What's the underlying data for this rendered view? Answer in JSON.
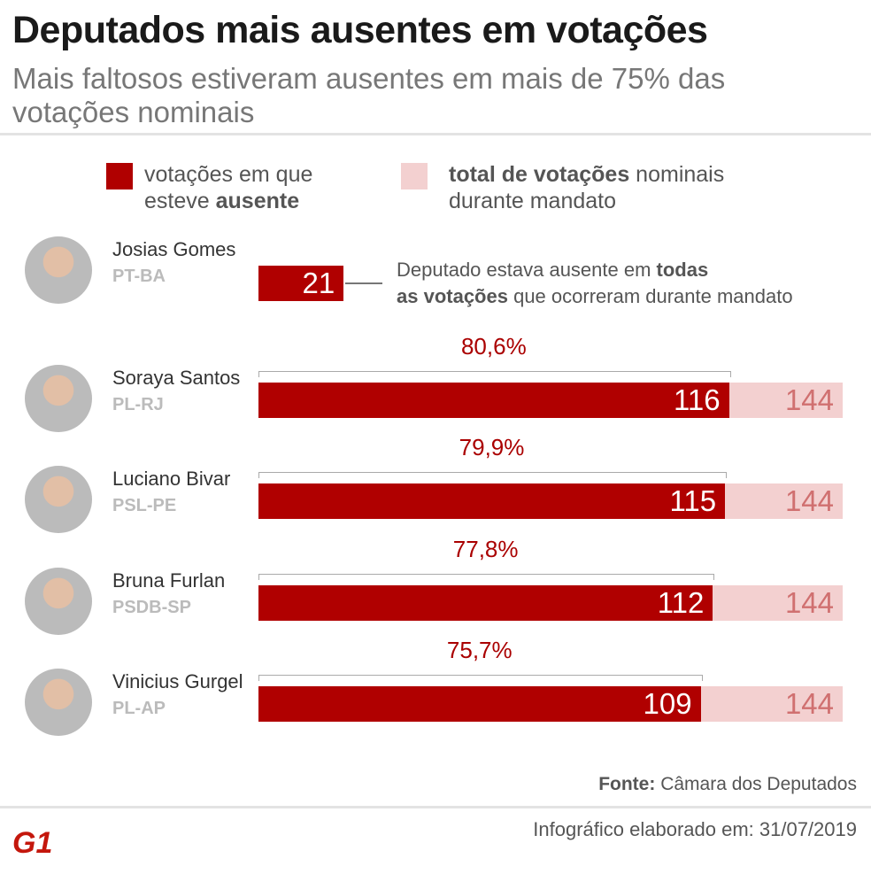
{
  "header": {
    "title": "Deputados mais ausentes em votações",
    "subtitle": "Mais faltosos estiveram ausentes em mais de 75% das votações nominais"
  },
  "legend": {
    "absent": {
      "line1": "votações em que",
      "line2_pre": "esteve ",
      "line2_bold": "ausente",
      "color": "#b00000"
    },
    "total": {
      "line1_bold": "total de votações",
      "line1_rest": " nominais",
      "line2": "durante mandato",
      "color": "#f3d0d0"
    }
  },
  "note": {
    "pre": "Deputado estava ausente em ",
    "bold1": "todas",
    "bold2": "as votações",
    "post": " que ocorreram durante mandato"
  },
  "chart_data": {
    "type": "bar",
    "orientation": "horizontal",
    "categories": [
      "Josias Gomes",
      "Soraya Santos",
      "Luciano Bivar",
      "Bruna Furlan",
      "Vinicius Gurgel"
    ],
    "parties": [
      "PT-BA",
      "PL-RJ",
      "PSL-PE",
      "PSDB-SP",
      "PL-AP"
    ],
    "series": [
      {
        "name": "votações em que esteve ausente",
        "values": [
          21,
          116,
          115,
          112,
          109
        ]
      },
      {
        "name": "total de votações nominais durante mandato",
        "values": [
          null,
          144,
          144,
          144,
          144
        ]
      }
    ],
    "percent_labels": [
      null,
      "80,6%",
      "79,9%",
      "77,8%",
      "75,7%"
    ],
    "xlim": [
      0,
      144
    ]
  },
  "footer": {
    "source_label": "Fonte:",
    "source": " Câmara dos Deputados",
    "date": "Infográfico elaborado em: 31/07/2019",
    "logo": "G1"
  }
}
